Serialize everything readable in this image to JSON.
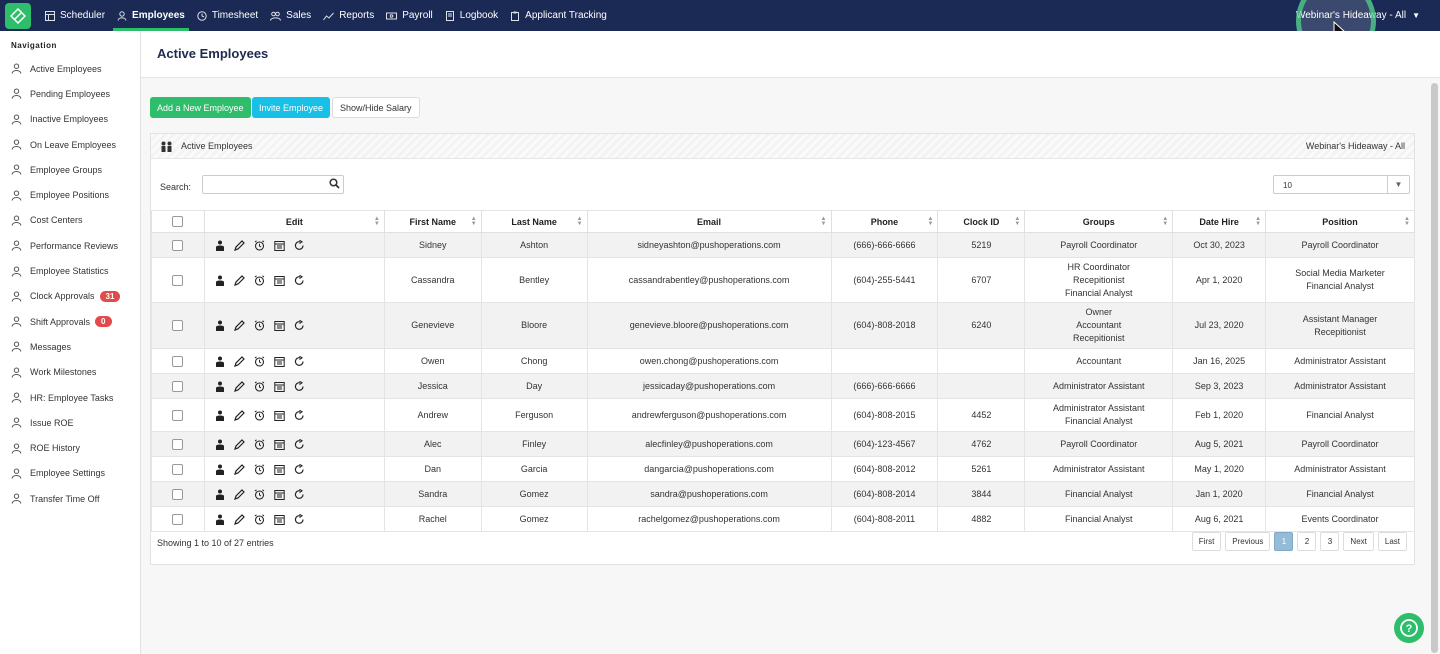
{
  "topnav": {
    "items": [
      {
        "label": "Scheduler",
        "icon": "grid-icon"
      },
      {
        "label": "Employees",
        "icon": "user-icon",
        "active": true
      },
      {
        "label": "Timesheet",
        "icon": "clock-icon"
      },
      {
        "label": "Sales",
        "icon": "people-icon"
      },
      {
        "label": "Reports",
        "icon": "chart-icon"
      },
      {
        "label": "Payroll",
        "icon": "payroll-icon"
      },
      {
        "label": "Logbook",
        "icon": "book-icon"
      },
      {
        "label": "Applicant Tracking",
        "icon": "clipboard-icon"
      }
    ],
    "location": "Webinar's Hideaway - All"
  },
  "sidebar": {
    "title": "Navigation",
    "items": [
      {
        "label": "Active Employees"
      },
      {
        "label": "Pending Employees"
      },
      {
        "label": "Inactive Employees"
      },
      {
        "label": "On Leave Employees"
      },
      {
        "label": "Employee Groups"
      },
      {
        "label": "Employee Positions"
      },
      {
        "label": "Cost Centers"
      },
      {
        "label": "Performance Reviews"
      },
      {
        "label": "Employee Statistics"
      },
      {
        "label": "Clock Approvals",
        "badge": "31"
      },
      {
        "label": "Shift Approvals",
        "badge": "0"
      },
      {
        "label": "Messages"
      },
      {
        "label": "Work Milestones"
      },
      {
        "label": "HR: Employee Tasks"
      },
      {
        "label": "Issue ROE"
      },
      {
        "label": "ROE History"
      },
      {
        "label": "Employee Settings"
      },
      {
        "label": "Transfer Time Off"
      }
    ]
  },
  "page": {
    "title": "Active Employees",
    "buttons": {
      "add": "Add a New Employee",
      "invite": "Invite Employee",
      "salary": "Show/Hide Salary"
    }
  },
  "panel": {
    "title": "Active Employees",
    "location": "Webinar's Hideaway - All",
    "search_label": "Search:",
    "search_value": "",
    "page_size": "10"
  },
  "table": {
    "columns": [
      "Edit",
      "First Name",
      "Last Name",
      "Email",
      "Phone",
      "Clock ID",
      "Groups",
      "Date Hire",
      "Position"
    ],
    "rows": [
      {
        "first": "Sidney",
        "last": "Ashton",
        "email": "sidneyashton@pushoperations.com",
        "phone": "(666)-666-6666",
        "clock": "5219",
        "groups": [
          "Payroll Coordinator"
        ],
        "hire": "Oct 30, 2023",
        "position": [
          "Payroll Coordinator"
        ]
      },
      {
        "first": "Cassandra",
        "last": "Bentley",
        "email": "cassandrabentley@pushoperations.com",
        "phone": "(604)-255-5441",
        "clock": "6707",
        "groups": [
          "HR Coordinator",
          "Recepitionist",
          "Financial Analyst"
        ],
        "hire": "Apr 1, 2020",
        "position": [
          "Social Media Marketer",
          "Financial Analyst"
        ]
      },
      {
        "first": "Genevieve",
        "last": "Bloore",
        "email": "genevieve.bloore@pushoperations.com",
        "phone": "(604)-808-2018",
        "clock": "6240",
        "groups": [
          "Owner",
          "Accountant",
          "Recepitionist"
        ],
        "hire": "Jul 23, 2020",
        "position": [
          "Assistant Manager",
          "Recepitionist"
        ]
      },
      {
        "first": "Owen",
        "last": "Chong",
        "email": "owen.chong@pushoperations.com",
        "phone": "",
        "clock": "",
        "groups": [
          "Accountant"
        ],
        "hire": "Jan 16, 2025",
        "position": [
          "Administrator Assistant"
        ]
      },
      {
        "first": "Jessica",
        "last": "Day",
        "email": "jessicaday@pushoperations.com",
        "phone": "(666)-666-6666",
        "clock": "",
        "groups": [
          "Administrator Assistant"
        ],
        "hire": "Sep 3, 2023",
        "position": [
          "Administrator Assistant"
        ]
      },
      {
        "first": "Andrew",
        "last": "Ferguson",
        "email": "andrewferguson@pushoperations.com",
        "phone": "(604)-808-2015",
        "clock": "4452",
        "groups": [
          "Administrator Assistant",
          "Financial Analyst"
        ],
        "hire": "Feb 1, 2020",
        "position": [
          "Financial Analyst"
        ]
      },
      {
        "first": "Alec",
        "last": "Finley",
        "email": "alecfinley@pushoperations.com",
        "phone": "(604)-123-4567",
        "clock": "4762",
        "groups": [
          "Payroll Coordinator"
        ],
        "hire": "Aug 5, 2021",
        "position": [
          "Payroll Coordinator"
        ]
      },
      {
        "first": "Dan",
        "last": "Garcia",
        "email": "dangarcia@pushoperations.com",
        "phone": "(604)-808-2012",
        "clock": "5261",
        "groups": [
          "Administrator Assistant"
        ],
        "hire": "May 1, 2020",
        "position": [
          "Administrator Assistant"
        ]
      },
      {
        "first": "Sandra",
        "last": "Gomez",
        "email": "sandra@pushoperations.com",
        "phone": "(604)-808-2014",
        "clock": "3844",
        "groups": [
          "Financial Analyst"
        ],
        "hire": "Jan 1, 2020",
        "position": [
          "Financial Analyst"
        ]
      },
      {
        "first": "Rachel",
        "last": "Gomez",
        "email": "rachelgomez@pushoperations.com",
        "phone": "(604)-808-2011",
        "clock": "4882",
        "groups": [
          "Financial Analyst"
        ],
        "hire": "Aug 6, 2021",
        "position": [
          "Events Coordinator"
        ]
      }
    ]
  },
  "footer": {
    "showing": "Showing 1 to 10 of 27 entries",
    "pager": [
      "First",
      "Previous",
      "1",
      "2",
      "3",
      "Next",
      "Last"
    ],
    "active_page": "1"
  },
  "colors": {
    "nav_bg": "#1b2a55",
    "accent_green": "#2ebd6b",
    "accent_cyan": "#18c0e8",
    "badge_red": "#e14b4b"
  }
}
